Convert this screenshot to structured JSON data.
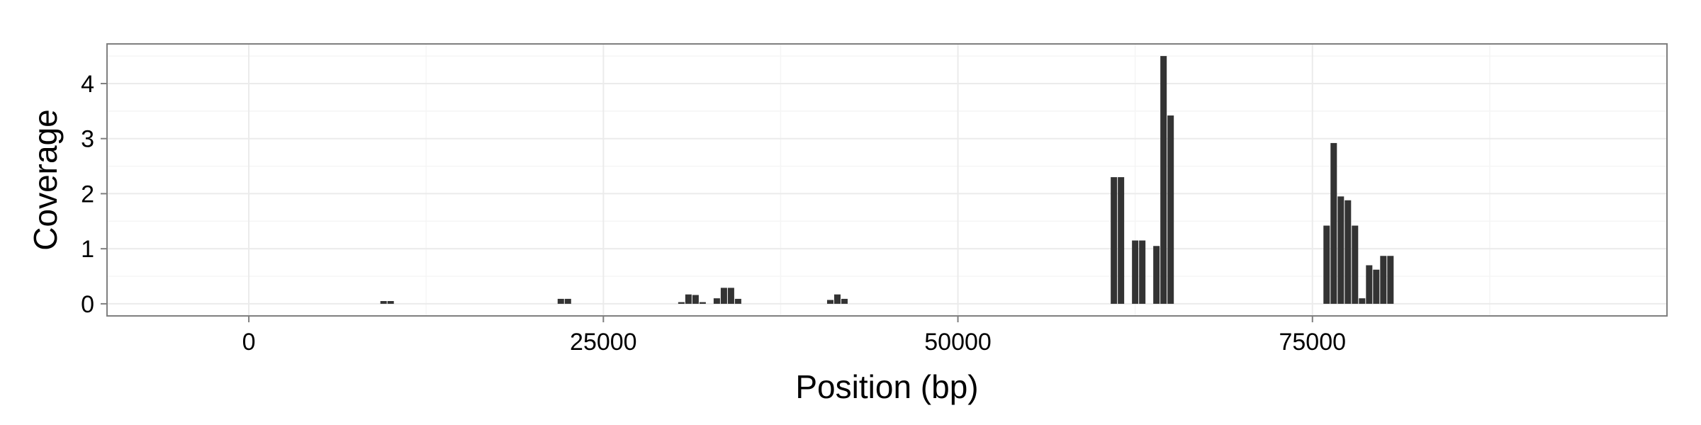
{
  "chart_data": {
    "type": "bar",
    "title": "",
    "xlabel": "Position (bp)",
    "ylabel": "Coverage",
    "xlim": [
      -10000,
      100000
    ],
    "ylim": [
      -0.22,
      4.72
    ],
    "x_ticks": [
      0,
      25000,
      50000,
      75000
    ],
    "y_ticks": [
      0,
      1,
      2,
      3,
      4
    ],
    "grid": true,
    "legend": "none",
    "colors": {
      "bar": "#333333",
      "panel_border": "#7f7f7f",
      "grid_major": "#ebebeb",
      "grid_minor": "#f5f5f5"
    },
    "bars": [
      {
        "x": 9500,
        "y": 0.05
      },
      {
        "x": 10000,
        "y": 0.05
      },
      {
        "x": 22000,
        "y": 0.09
      },
      {
        "x": 22500,
        "y": 0.09
      },
      {
        "x": 30500,
        "y": 0.03
      },
      {
        "x": 31000,
        "y": 0.17
      },
      {
        "x": 31500,
        "y": 0.16
      },
      {
        "x": 32000,
        "y": 0.03
      },
      {
        "x": 33000,
        "y": 0.1
      },
      {
        "x": 33500,
        "y": 0.29
      },
      {
        "x": 34000,
        "y": 0.29
      },
      {
        "x": 34500,
        "y": 0.09
      },
      {
        "x": 41000,
        "y": 0.07
      },
      {
        "x": 41500,
        "y": 0.17
      },
      {
        "x": 42000,
        "y": 0.09
      },
      {
        "x": 61000,
        "y": 2.3
      },
      {
        "x": 61500,
        "y": 2.3
      },
      {
        "x": 62500,
        "y": 1.15
      },
      {
        "x": 63000,
        "y": 1.15
      },
      {
        "x": 64000,
        "y": 1.05
      },
      {
        "x": 64500,
        "y": 4.5
      },
      {
        "x": 65000,
        "y": 3.42
      },
      {
        "x": 76000,
        "y": 1.42
      },
      {
        "x": 76500,
        "y": 2.92
      },
      {
        "x": 77000,
        "y": 1.95
      },
      {
        "x": 77500,
        "y": 1.88
      },
      {
        "x": 78000,
        "y": 1.42
      },
      {
        "x": 78500,
        "y": 0.1
      },
      {
        "x": 79000,
        "y": 0.7
      },
      {
        "x": 79500,
        "y": 0.62
      },
      {
        "x": 80000,
        "y": 0.87
      },
      {
        "x": 80500,
        "y": 0.87
      }
    ]
  }
}
